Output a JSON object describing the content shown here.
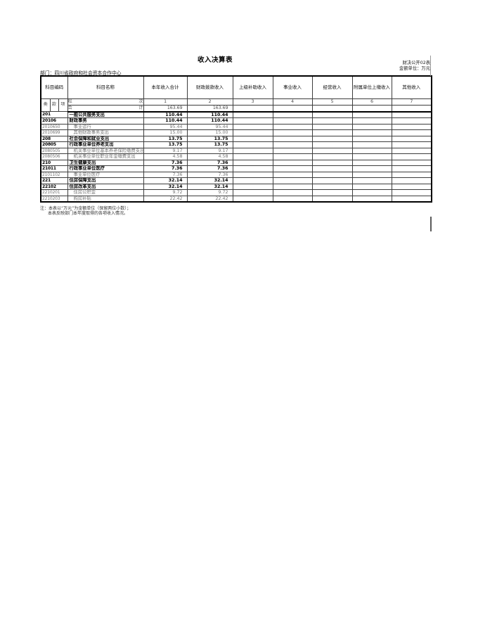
{
  "page": {
    "title": "收入决算表",
    "doc_code": "财决公开02表",
    "unit_label": "金额单位：万元",
    "department": "部门：四川省政府和社会资本合作中心",
    "notes": [
      "注：本表以“万元”为金额单位（保留两位小数）；",
      "本表反映部门本年度取得的各项收入情况。"
    ]
  },
  "colors": {
    "ink": "#000000",
    "detail_text": "#757575",
    "grid_border": "#3d3d3d"
  },
  "table": {
    "header": {
      "code_label": "科目编码",
      "name_label": "科目名称",
      "code_subcols": [
        "类",
        "款",
        "项"
      ],
      "value_columns": [
        "本年收入合计",
        "财政拨款收入",
        "上级补助收入",
        "事业收入",
        "经营收入",
        "附属单位上缴收入",
        "其他收入"
      ],
      "rank_left": "栏",
      "rank_right": "次",
      "column_numbers": [
        "1",
        "2",
        "3",
        "4",
        "5",
        "6",
        "7"
      ]
    },
    "total_row": {
      "label_left": "合",
      "label_right": "计",
      "values": [
        "163.69",
        "163.69",
        "",
        "",
        "",
        "",
        ""
      ]
    },
    "rows": [
      {
        "code": "201",
        "name": "一般公共服务支出",
        "level": "summary",
        "values": [
          "110.44",
          "110.44",
          "",
          "",
          "",
          "",
          ""
        ]
      },
      {
        "code": "20106",
        "name": "财政事务",
        "level": "summary",
        "values": [
          "110.44",
          "110.44",
          "",
          "",
          "",
          "",
          ""
        ]
      },
      {
        "code": "2010650",
        "name": "事业运行",
        "level": "detail",
        "values": [
          "95.44",
          "95.44",
          "",
          "",
          "",
          "",
          ""
        ]
      },
      {
        "code": "2010699",
        "name": "其他财政事务支出",
        "level": "detail",
        "values": [
          "15.00",
          "15.00",
          "",
          "",
          "",
          "",
          ""
        ]
      },
      {
        "code": "208",
        "name": "社会保障和就业支出",
        "level": "summary",
        "values": [
          "13.75",
          "13.75",
          "",
          "",
          "",
          "",
          ""
        ]
      },
      {
        "code": "20805",
        "name": "行政事业单位养老支出",
        "level": "summary",
        "values": [
          "13.75",
          "13.75",
          "",
          "",
          "",
          "",
          ""
        ]
      },
      {
        "code": "2080505",
        "name": "机关事业单位基本养老保险缴费支出",
        "level": "detail",
        "values": [
          "9.17",
          "9.17",
          "",
          "",
          "",
          "",
          ""
        ]
      },
      {
        "code": "2080506",
        "name": "机关事业单位职业年金缴费支出",
        "level": "detail",
        "values": [
          "4.58",
          "4.58",
          "",
          "",
          "",
          "",
          ""
        ]
      },
      {
        "code": "210",
        "name": "卫生健康支出",
        "level": "summary",
        "values": [
          "7.36",
          "7.36",
          "",
          "",
          "",
          "",
          ""
        ]
      },
      {
        "code": "21011",
        "name": "行政事业单位医疗",
        "level": "summary",
        "values": [
          "7.36",
          "7.36",
          "",
          "",
          "",
          "",
          ""
        ]
      },
      {
        "code": "2101102",
        "name": "事业单位医疗",
        "level": "detail",
        "values": [
          "7.36",
          "7.36",
          "",
          "",
          "",
          "",
          ""
        ]
      },
      {
        "code": "221",
        "name": "住房保障支出",
        "level": "summary",
        "values": [
          "32.14",
          "32.14",
          "",
          "",
          "",
          "",
          ""
        ]
      },
      {
        "code": "22102",
        "name": "住房改革支出",
        "level": "summary",
        "values": [
          "32.14",
          "32.14",
          "",
          "",
          "",
          "",
          ""
        ]
      },
      {
        "code": "2210201",
        "name": "住房公积金",
        "level": "detail",
        "values": [
          "9.72",
          "9.72",
          "",
          "",
          "",
          "",
          ""
        ]
      },
      {
        "code": "2210203",
        "name": "购房补贴",
        "level": "detail",
        "values": [
          "22.42",
          "22.42",
          "",
          "",
          "",
          "",
          ""
        ]
      }
    ]
  }
}
